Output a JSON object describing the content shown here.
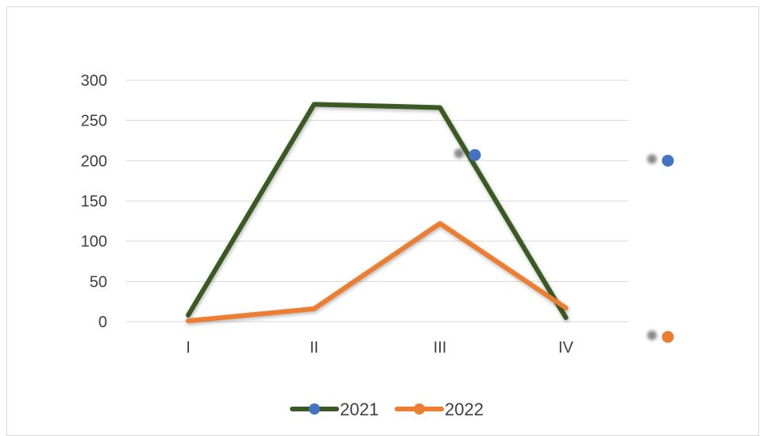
{
  "chart_data": {
    "type": "line",
    "title": "",
    "xlabel": "",
    "ylabel": "",
    "categories": [
      "I",
      "II",
      "III",
      "IV"
    ],
    "ylim": [
      0,
      300
    ],
    "yticks": [
      0,
      50,
      100,
      150,
      200,
      250,
      300
    ],
    "grid": true,
    "legend_position": "bottom",
    "series": [
      {
        "name": "2021",
        "values": [
          8,
          270,
          266,
          5
        ],
        "color": "#3a5a23",
        "marker_color": "#4472c4"
      },
      {
        "name": "2022",
        "values": [
          1,
          16,
          122,
          17
        ],
        "color": "#ed7d31",
        "marker_color": "#ed7d31"
      }
    ],
    "detached_markers": [
      {
        "series": "2021",
        "value": 208,
        "position": "near-III",
        "color": "#4472c4"
      },
      {
        "series": "2021",
        "value": 201,
        "position": "right-of-plot",
        "color": "#4472c4"
      },
      {
        "series": "2022",
        "value": -18,
        "position": "right-of-plot",
        "color": "#ed7d31"
      }
    ]
  }
}
